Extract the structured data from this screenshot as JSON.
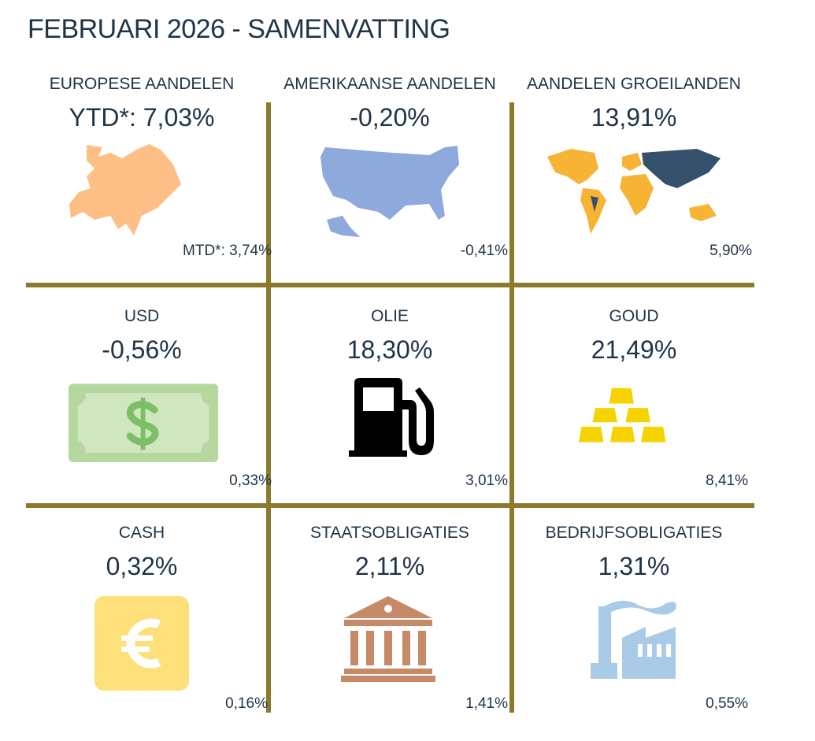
{
  "header": {
    "title": "FEBRUARI 2026 - SAMENVATTING"
  },
  "tiles": [
    {
      "label": "EUROPESE AANDELEN",
      "ytd": "YTD*: 7,03%",
      "mtd": "MTD*: 3,74%"
    },
    {
      "label": "AMERIKAANSE AANDELEN",
      "ytd": "-0,20%",
      "mtd": "-0,41%"
    },
    {
      "label": "AANDELEN GROEILANDEN",
      "ytd": "13,91%",
      "mtd": "5,90%"
    },
    {
      "label": "USD",
      "ytd": "-0,56%",
      "mtd": "0,33%"
    },
    {
      "label": "OLIE",
      "ytd": "18,30%",
      "mtd": "3,01%"
    },
    {
      "label": "GOUD",
      "ytd": "21,49%",
      "mtd": "8,41%"
    },
    {
      "label": "CASH",
      "ytd": "0,32%",
      "mtd": "0,16%"
    },
    {
      "label": "STAATSOBLIGATIES",
      "ytd": "2,11%",
      "mtd": "1,41%"
    },
    {
      "label": "BEDRIJFSOBLIGATIES",
      "ytd": "1,31%",
      "mtd": "0,55%"
    }
  ]
}
